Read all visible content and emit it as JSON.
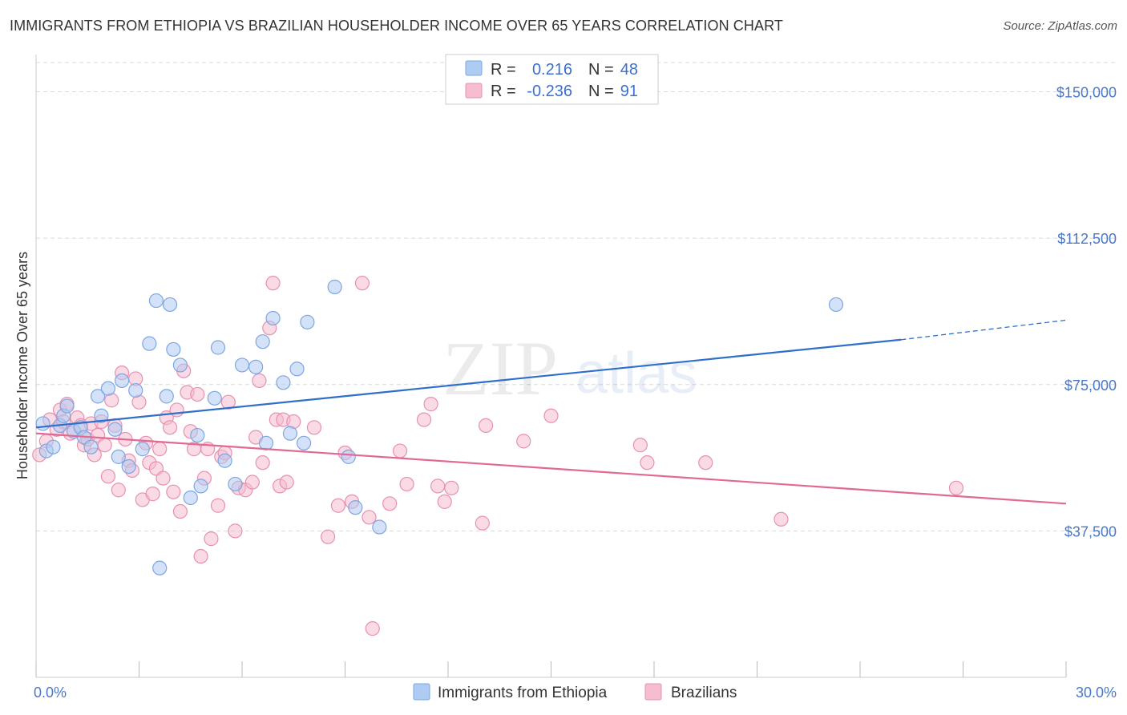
{
  "title": "IMMIGRANTS FROM ETHIOPIA VS BRAZILIAN HOUSEHOLDER INCOME OVER 65 YEARS CORRELATION CHART",
  "source": "Source: ZipAtlas.com",
  "watermark": {
    "zip": "ZIP",
    "atlas": "atlas"
  },
  "colors": {
    "blue_fill": "#aecbf2",
    "blue_stroke": "#7ea6e0",
    "blue_line": "#2f6fcb",
    "pink_fill": "#f6bcd0",
    "pink_stroke": "#e890b0",
    "pink_line": "#e06a95",
    "axis_text": "#4a78c8",
    "grid": "#d9d9d9"
  },
  "legend": {
    "rows": [
      {
        "r_label": "R =",
        "r_value": "0.216",
        "n_label": "N =",
        "n_value": "48"
      },
      {
        "r_label": "R =",
        "r_value": "-0.236",
        "n_label": "N =",
        "n_value": "91"
      }
    ]
  },
  "chart_data": {
    "type": "scatter",
    "title": "IMMIGRANTS FROM ETHIOPIA VS BRAZILIAN HOUSEHOLDER INCOME OVER 65 YEARS CORRELATION CHART",
    "xlabel": "",
    "ylabel": "Householder Income Over 65 years",
    "xlim": [
      0,
      30
    ],
    "ylim": [
      0,
      157500
    ],
    "x_tick_labels": {
      "min": "0.0%",
      "max": "30.0%"
    },
    "y_ticks": [
      37500,
      75000,
      112500,
      150000
    ],
    "y_tick_labels": [
      "$37,500",
      "$75,000",
      "$112,500",
      "$150,000"
    ],
    "grid": true,
    "legend_position": "top-center",
    "series": [
      {
        "name": "Immigrants from Ethiopia",
        "r": 0.216,
        "n": 48,
        "trend": {
          "x0": 0,
          "y0": 64000,
          "x1": 25.2,
          "y1": 86500,
          "dash_to_x": 30,
          "dash_to_y": 91500
        },
        "points": [
          [
            0.3,
            58000
          ],
          [
            0.5,
            59000
          ],
          [
            0.7,
            64500
          ],
          [
            0.8,
            67000
          ],
          [
            0.9,
            69500
          ],
          [
            1.1,
            63000
          ],
          [
            1.3,
            64000
          ],
          [
            1.4,
            61500
          ],
          [
            1.6,
            59000
          ],
          [
            1.8,
            72000
          ],
          [
            1.9,
            67000
          ],
          [
            2.1,
            74000
          ],
          [
            2.3,
            63500
          ],
          [
            2.4,
            56500
          ],
          [
            2.5,
            76000
          ],
          [
            2.7,
            54000
          ],
          [
            2.9,
            73500
          ],
          [
            3.1,
            58500
          ],
          [
            3.3,
            85500
          ],
          [
            3.5,
            96500
          ],
          [
            3.6,
            28000
          ],
          [
            3.8,
            72000
          ],
          [
            3.9,
            95500
          ],
          [
            4.0,
            84000
          ],
          [
            4.2,
            80000
          ],
          [
            4.5,
            46000
          ],
          [
            4.7,
            62000
          ],
          [
            4.8,
            49000
          ],
          [
            5.2,
            71500
          ],
          [
            5.3,
            84500
          ],
          [
            5.5,
            55500
          ],
          [
            5.8,
            49500
          ],
          [
            6.0,
            80000
          ],
          [
            6.4,
            79500
          ],
          [
            6.6,
            86000
          ],
          [
            6.7,
            60000
          ],
          [
            6.9,
            92000
          ],
          [
            7.2,
            75500
          ],
          [
            7.4,
            62500
          ],
          [
            7.6,
            79000
          ],
          [
            7.8,
            60000
          ],
          [
            7.9,
            91000
          ],
          [
            8.7,
            100000
          ],
          [
            9.1,
            56500
          ],
          [
            9.3,
            43500
          ],
          [
            10.0,
            38500
          ],
          [
            23.3,
            95500
          ],
          [
            0.2,
            65000
          ]
        ]
      },
      {
        "name": "Brazilians",
        "r": -0.236,
        "n": 91,
        "trend": {
          "x0": 0,
          "y0": 62500,
          "x1": 30,
          "y1": 44500
        },
        "points": [
          [
            0.1,
            57000
          ],
          [
            0.3,
            60500
          ],
          [
            0.4,
            66000
          ],
          [
            0.6,
            63500
          ],
          [
            0.7,
            68500
          ],
          [
            0.8,
            65500
          ],
          [
            0.9,
            70000
          ],
          [
            1.0,
            62500
          ],
          [
            1.2,
            66500
          ],
          [
            1.3,
            64500
          ],
          [
            1.4,
            59500
          ],
          [
            1.5,
            61000
          ],
          [
            1.6,
            65000
          ],
          [
            1.7,
            57000
          ],
          [
            1.8,
            62000
          ],
          [
            1.9,
            65500
          ],
          [
            2.0,
            59500
          ],
          [
            2.1,
            51500
          ],
          [
            2.2,
            71000
          ],
          [
            2.3,
            64500
          ],
          [
            2.4,
            48000
          ],
          [
            2.5,
            78000
          ],
          [
            2.6,
            61000
          ],
          [
            2.7,
            55500
          ],
          [
            2.8,
            53000
          ],
          [
            2.9,
            76500
          ],
          [
            3.0,
            70500
          ],
          [
            3.1,
            45500
          ],
          [
            3.2,
            60000
          ],
          [
            3.3,
            55000
          ],
          [
            3.4,
            47000
          ],
          [
            3.5,
            53500
          ],
          [
            3.6,
            58500
          ],
          [
            3.7,
            51000
          ],
          [
            3.8,
            66500
          ],
          [
            3.9,
            64000
          ],
          [
            4.0,
            47500
          ],
          [
            4.1,
            68500
          ],
          [
            4.2,
            42500
          ],
          [
            4.3,
            78500
          ],
          [
            4.4,
            73000
          ],
          [
            4.5,
            63000
          ],
          [
            4.6,
            58500
          ],
          [
            4.7,
            72500
          ],
          [
            4.8,
            31000
          ],
          [
            4.9,
            51000
          ],
          [
            5.0,
            58500
          ],
          [
            5.1,
            35500
          ],
          [
            5.3,
            44000
          ],
          [
            5.4,
            56500
          ],
          [
            5.5,
            57500
          ],
          [
            5.6,
            70500
          ],
          [
            5.8,
            37500
          ],
          [
            5.9,
            48500
          ],
          [
            6.1,
            48000
          ],
          [
            6.3,
            50000
          ],
          [
            6.4,
            61500
          ],
          [
            6.5,
            76000
          ],
          [
            6.6,
            55000
          ],
          [
            6.8,
            89500
          ],
          [
            6.9,
            101000
          ],
          [
            7.0,
            66000
          ],
          [
            7.1,
            49000
          ],
          [
            7.2,
            66000
          ],
          [
            7.3,
            50000
          ],
          [
            7.5,
            65500
          ],
          [
            8.1,
            64000
          ],
          [
            8.5,
            36000
          ],
          [
            8.8,
            44000
          ],
          [
            9.0,
            57500
          ],
          [
            9.2,
            45000
          ],
          [
            9.5,
            101000
          ],
          [
            9.7,
            41000
          ],
          [
            9.8,
            12500
          ],
          [
            10.3,
            44500
          ],
          [
            10.6,
            58000
          ],
          [
            10.8,
            49500
          ],
          [
            11.3,
            66000
          ],
          [
            11.5,
            70000
          ],
          [
            11.7,
            49000
          ],
          [
            11.9,
            45000
          ],
          [
            12.1,
            48500
          ],
          [
            13.0,
            39500
          ],
          [
            13.1,
            64500
          ],
          [
            14.2,
            60500
          ],
          [
            15.0,
            67000
          ],
          [
            17.6,
            59500
          ],
          [
            17.8,
            55000
          ],
          [
            19.5,
            55000
          ],
          [
            21.7,
            40500
          ],
          [
            26.8,
            48500
          ]
        ]
      }
    ]
  },
  "bottom_legend": [
    {
      "label": "Immigrants from Ethiopia"
    },
    {
      "label": "Brazilians"
    }
  ]
}
